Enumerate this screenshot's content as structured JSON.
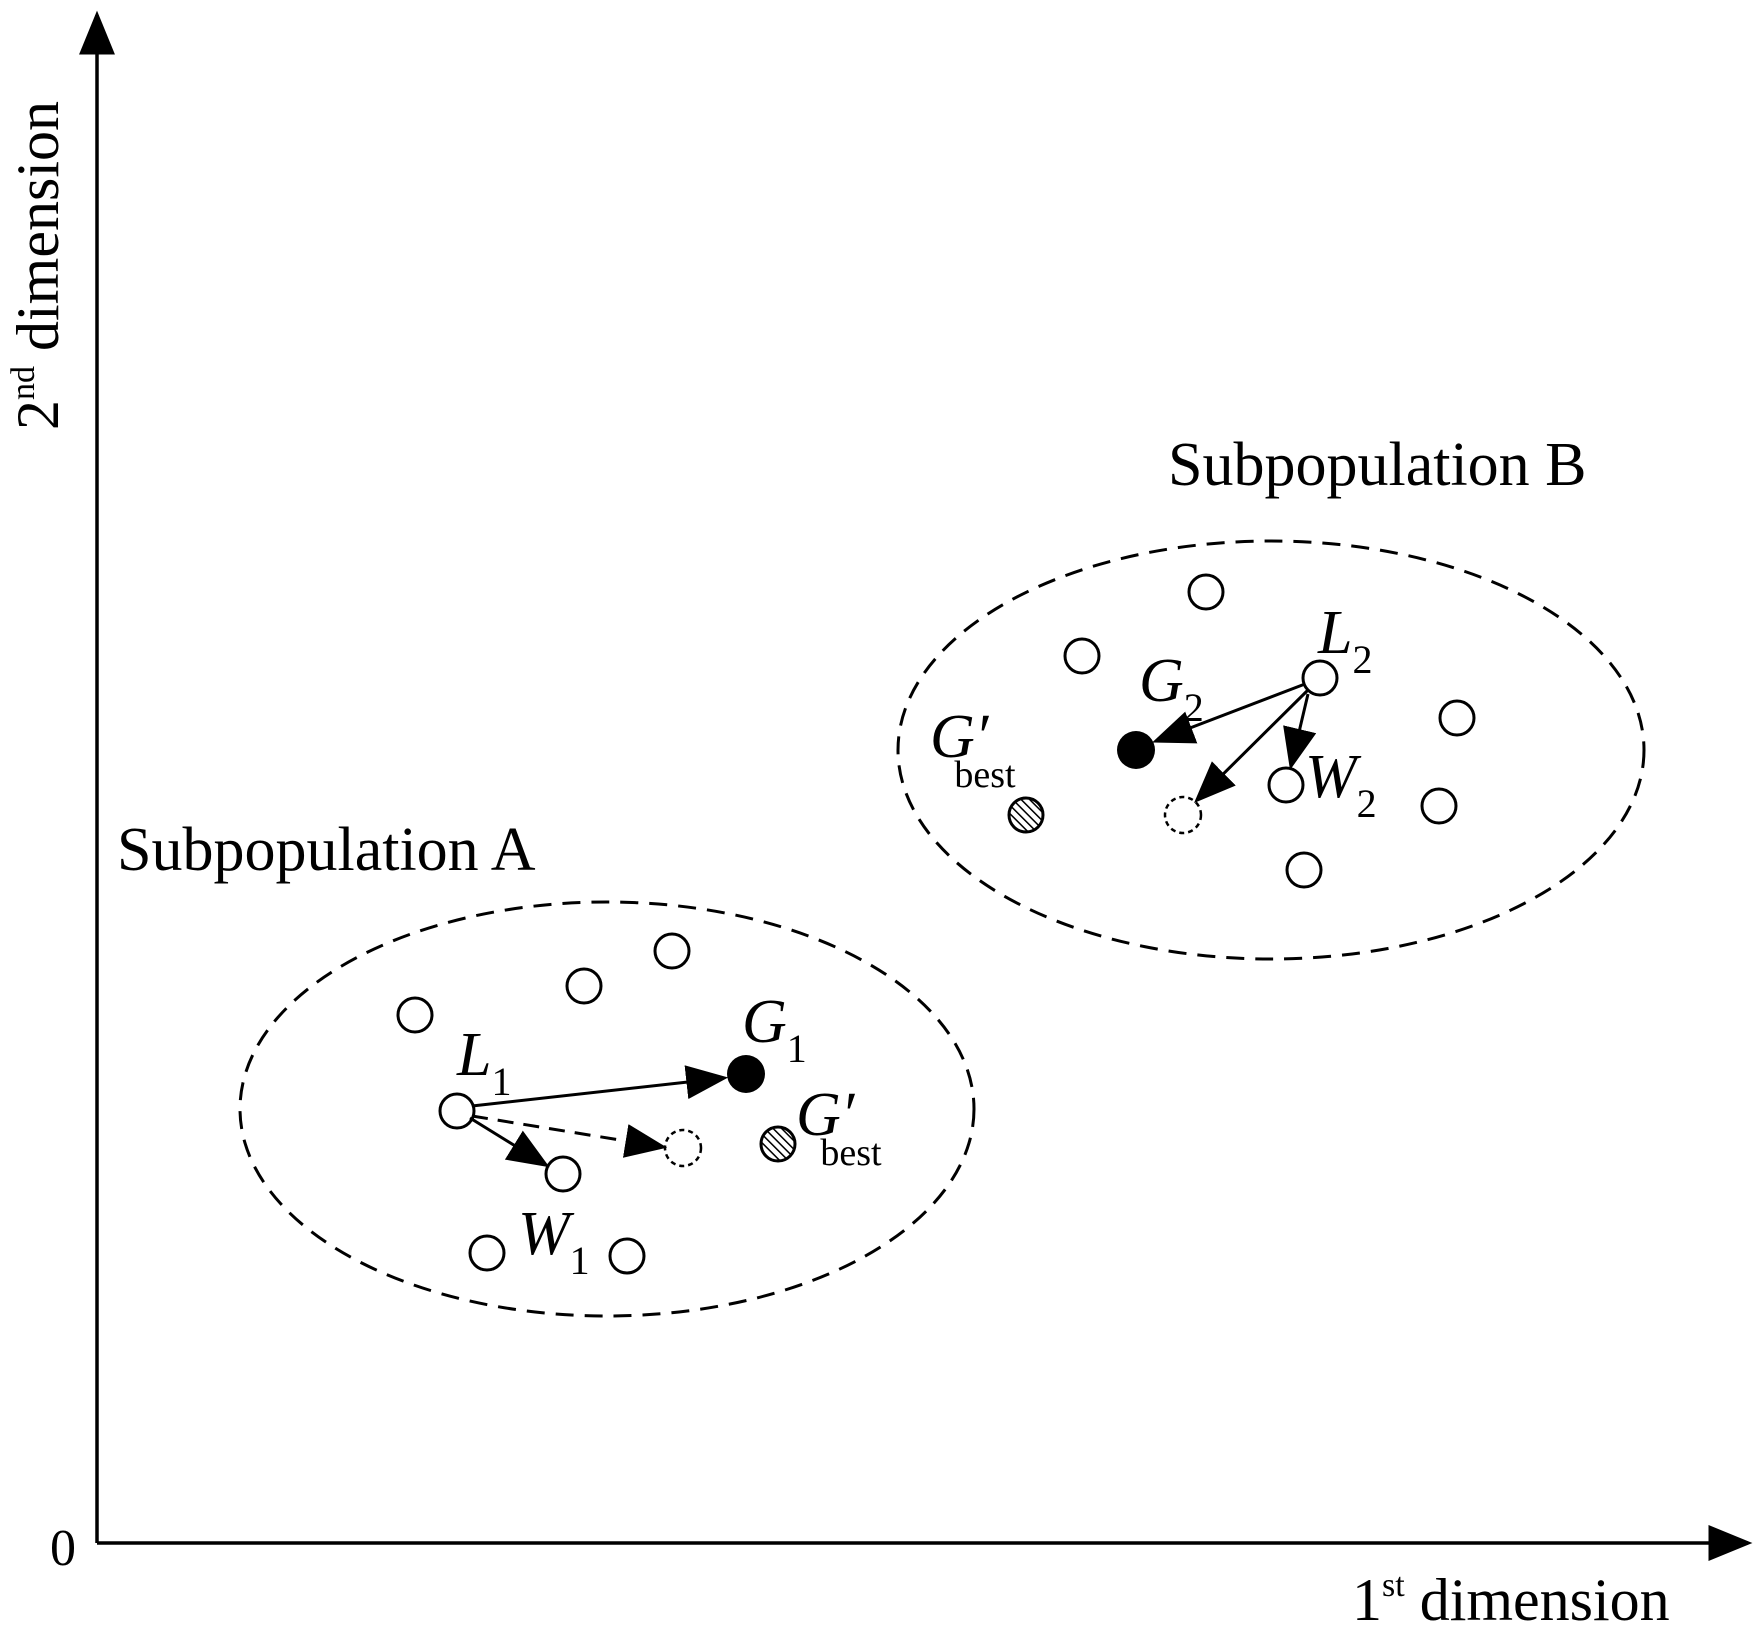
{
  "axes": {
    "origin_label": "0",
    "x_label": {
      "base": "1",
      "sup": "st",
      "rest": " dimension"
    },
    "y_label": {
      "base": "2",
      "sup": "nd",
      "rest": " dimension"
    }
  },
  "subpopulations": [
    {
      "label": "Subpopulation A"
    },
    {
      "label": "Subpopulation B"
    }
  ],
  "labels": {
    "L1": {
      "main": "L",
      "sub": "1"
    },
    "W1": {
      "main": "W",
      "sub": "1"
    },
    "G1": {
      "main": "G",
      "sub": "1"
    },
    "GbestA": {
      "main": "G′",
      "sub": "best"
    },
    "L2": {
      "main": "L",
      "sub": "2"
    },
    "W2": {
      "main": "W",
      "sub": "2"
    },
    "G2": {
      "main": "G",
      "sub": "2"
    },
    "GbestB": {
      "main": "G′",
      "sub": "best"
    }
  },
  "colors": {
    "ink": "#000000",
    "background": "#ffffff"
  }
}
